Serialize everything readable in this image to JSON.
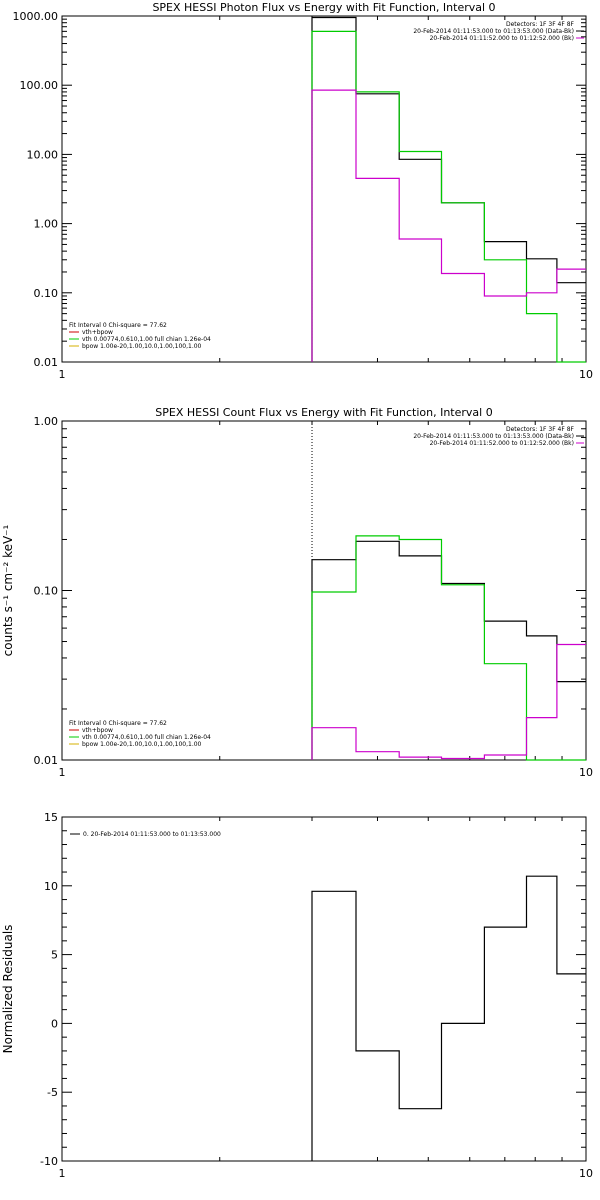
{
  "chart_data": [
    {
      "type": "line",
      "title": "SPEX HESSI Photon Flux vs Energy with Fit Function, Interval 0",
      "ylabel": "",
      "xscale": "log",
      "yscale": "log",
      "xlim": [
        1,
        10
      ],
      "ylim": [
        0.01,
        1000
      ],
      "xticks": [
        {
          "v": 1,
          "label": "1"
        },
        {
          "v": 10,
          "label": "10"
        }
      ],
      "yticks": [
        {
          "v": 1000,
          "label": "1000.00"
        },
        {
          "v": 100,
          "label": "100.00"
        },
        {
          "v": 10,
          "label": "10.00"
        },
        {
          "v": 1,
          "label": "1.00"
        },
        {
          "v": 0.1,
          "label": "0.10"
        },
        {
          "v": 0.01,
          "label": "0.01"
        }
      ],
      "vline_x": 3,
      "legend_top_right": [
        "Detectors: 1F 3F 4F 8F",
        "20-Feb-2014 01:11:53.000 to 01:13:53.000 (Data-Bk)",
        "20-Feb-2014 01:11:52.000 to 01:12:52.000 (Bk)"
      ],
      "legend_bottom_left": [
        "Fit Interval 0   Chi-square = 77.62",
        "vth+bpow",
        "vth 0.00774,0.610,1.00  full chian 1.26e-04",
        "bpow 1.00e-20,1.00,10.0,1.00,100,1.00"
      ],
      "bin_edges": [
        3,
        3.64,
        4.4,
        5.3,
        6.4,
        7.7,
        8.8,
        10
      ],
      "series": [
        {
          "name": "20-Feb-2014 01:11:53.000 to 01:13:53.000 (Data-Bk)",
          "color": "#000000",
          "values": [
            950,
            75,
            8.5,
            2.0,
            0.55,
            0.31,
            0.14
          ]
        },
        {
          "name": "vth+bpow",
          "color": "#00cc00",
          "values": [
            600,
            80,
            11,
            2.0,
            0.3,
            0.05,
            0.01
          ]
        },
        {
          "name": "20-Feb-2014 01:11:52.000 to 01:12:52.000 (Bk)",
          "color": "#cc00cc",
          "values": [
            85,
            4.5,
            0.6,
            0.19,
            0.09,
            0.1,
            0.22
          ]
        }
      ]
    },
    {
      "type": "line",
      "title": "SPEX HESSI Count Flux vs Energy with Fit Function, Interval 0",
      "ylabel": "counts s⁻¹ cm⁻² keV⁻¹",
      "xscale": "log",
      "yscale": "log",
      "xlim": [
        1,
        10
      ],
      "ylim": [
        0.01,
        1
      ],
      "xticks": [
        {
          "v": 1,
          "label": "1"
        },
        {
          "v": 10,
          "label": "10"
        }
      ],
      "yticks": [
        {
          "v": 1,
          "label": "1.00"
        },
        {
          "v": 0.1,
          "label": "0.10"
        },
        {
          "v": 0.01,
          "label": "0.01"
        }
      ],
      "vline_x": 3,
      "legend_top_right": [
        "Detectors: 1F 3F 4F 8F",
        "20-Feb-2014 01:11:53.000 to 01:13:53.000 (Data-Bk)",
        "20-Feb-2014 01:11:52.000 to 01:12:52.000 (Bk)"
      ],
      "legend_bottom_left": [
        "Fit Interval 0   Chi-square = 77.62",
        "vth+bpow",
        "vth 0.00774,0.610,1.00  full chian 1.26e-04",
        "bpow 1.00e-20,1.00,10.0,1.00,100,1.00"
      ],
      "bin_edges": [
        3,
        3.64,
        4.4,
        5.3,
        6.4,
        7.7,
        8.8,
        10
      ],
      "series": [
        {
          "name": "20-Feb-2014 01:11:53.000 to 01:13:53.000 (Data-Bk)",
          "color": "#000000",
          "values": [
            0.152,
            0.195,
            0.16,
            0.11,
            0.066,
            0.054,
            0.029
          ]
        },
        {
          "name": "vth+bpow",
          "color": "#00cc00",
          "values": [
            0.098,
            0.21,
            0.2,
            0.108,
            0.037,
            0.01,
            0.01
          ]
        },
        {
          "name": "20-Feb-2014 01:11:52.000 to 01:12:52.000 (Bk)",
          "color": "#cc00cc",
          "values": [
            0.0155,
            0.0112,
            0.0104,
            0.0102,
            0.0107,
            0.0178,
            0.048
          ]
        }
      ]
    },
    {
      "type": "line",
      "title": "",
      "ylabel": "Normalized Residuals",
      "xscale": "log",
      "yscale": "linear",
      "xlim": [
        1,
        10
      ],
      "ylim": [
        -10,
        15
      ],
      "xticks": [
        {
          "v": 1,
          "label": "1"
        },
        {
          "v": 10,
          "label": "10"
        }
      ],
      "yticks": [
        {
          "v": 15,
          "label": "15"
        },
        {
          "v": 10,
          "label": "10"
        },
        {
          "v": 5,
          "label": "5"
        },
        {
          "v": 0,
          "label": "0"
        },
        {
          "v": -5,
          "label": "-5"
        },
        {
          "v": -10,
          "label": "-10"
        }
      ],
      "legend_top_left": [
        "0. 20-Feb-2014 01:11:53.000 to 01:13:53.000"
      ],
      "bin_edges": [
        3,
        3.64,
        4.4,
        5.3,
        6.4,
        7.7,
        8.8,
        10
      ],
      "series": [
        {
          "name": "0. 20-Feb-2014 01:11:53.000 to 01:13:53.000",
          "color": "#000000",
          "values": [
            9.6,
            -2.0,
            -6.2,
            0.0,
            7.0,
            10.7,
            3.6
          ]
        }
      ]
    }
  ]
}
